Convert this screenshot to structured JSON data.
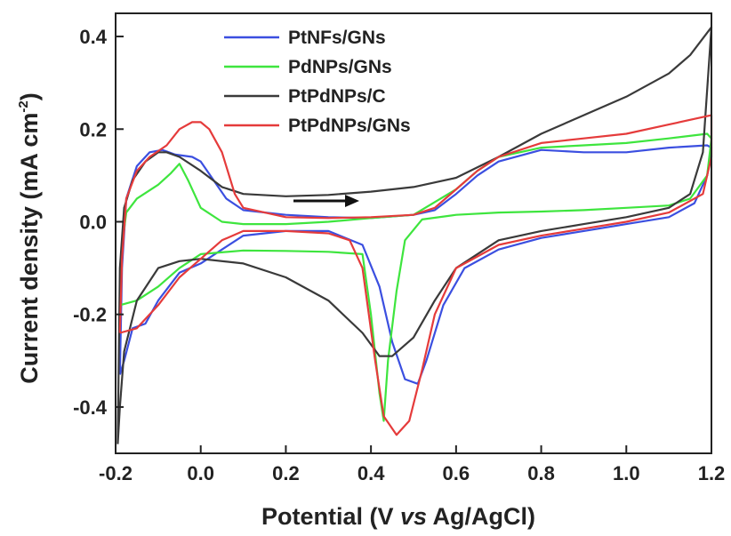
{
  "chart_data": {
    "type": "line",
    "xlabel_parts": [
      "Potential (V ",
      "vs",
      " Ag/AgCl)"
    ],
    "ylabel_parts": [
      "Current density (mA cm",
      "-2",
      ")"
    ],
    "xlim": [
      -0.2,
      1.2
    ],
    "ylim": [
      -0.5,
      0.45
    ],
    "x_ticks": [
      -0.2,
      0.0,
      0.2,
      0.4,
      0.6,
      0.8,
      1.0,
      1.2
    ],
    "x_tick_labels": [
      "-0.2",
      "0.0",
      "0.2",
      "0.4",
      "0.6",
      "0.8",
      "1.0",
      "1.2"
    ],
    "y_ticks": [
      -0.4,
      -0.2,
      0.0,
      0.2,
      0.4
    ],
    "y_tick_labels": [
      "-0.4",
      "-0.2",
      "0.0",
      "0.2",
      "0.4"
    ],
    "grid": false,
    "legend_position": "top-center",
    "scan_direction": "anodic",
    "series": [
      {
        "name": "PtNFs/GNs",
        "color": "#3b4fe0",
        "points": [
          [
            -0.19,
            -0.33
          ],
          [
            -0.185,
            -0.1
          ],
          [
            -0.175,
            0.05
          ],
          [
            -0.15,
            0.12
          ],
          [
            -0.12,
            0.15
          ],
          [
            -0.09,
            0.155
          ],
          [
            -0.06,
            0.145
          ],
          [
            -0.02,
            0.14
          ],
          [
            0.0,
            0.13
          ],
          [
            0.03,
            0.09
          ],
          [
            0.06,
            0.05
          ],
          [
            0.1,
            0.025
          ],
          [
            0.2,
            0.015
          ],
          [
            0.3,
            0.01
          ],
          [
            0.4,
            0.008
          ],
          [
            0.5,
            0.015
          ],
          [
            0.55,
            0.025
          ],
          [
            0.6,
            0.06
          ],
          [
            0.65,
            0.1
          ],
          [
            0.7,
            0.13
          ],
          [
            0.8,
            0.155
          ],
          [
            0.9,
            0.15
          ],
          [
            1.0,
            0.15
          ],
          [
            1.1,
            0.16
          ],
          [
            1.19,
            0.165
          ],
          [
            1.2,
            0.16
          ],
          [
            1.19,
            0.1
          ],
          [
            1.16,
            0.04
          ],
          [
            1.1,
            0.01
          ],
          [
            1.0,
            -0.005
          ],
          [
            0.9,
            -0.02
          ],
          [
            0.8,
            -0.035
          ],
          [
            0.7,
            -0.06
          ],
          [
            0.62,
            -0.1
          ],
          [
            0.57,
            -0.18
          ],
          [
            0.53,
            -0.3
          ],
          [
            0.51,
            -0.35
          ],
          [
            0.48,
            -0.34
          ],
          [
            0.45,
            -0.26
          ],
          [
            0.42,
            -0.14
          ],
          [
            0.38,
            -0.05
          ],
          [
            0.3,
            -0.02
          ],
          [
            0.2,
            -0.02
          ],
          [
            0.1,
            -0.03
          ],
          [
            0.05,
            -0.06
          ],
          [
            0.0,
            -0.09
          ],
          [
            -0.05,
            -0.11
          ],
          [
            -0.1,
            -0.17
          ],
          [
            -0.13,
            -0.22
          ],
          [
            -0.16,
            -0.23
          ],
          [
            -0.18,
            -0.3
          ],
          [
            -0.19,
            -0.33
          ]
        ]
      },
      {
        "name": "PdNPs/GNs",
        "color": "#3ee53e",
        "points": [
          [
            -0.19,
            -0.18
          ],
          [
            -0.185,
            -0.05
          ],
          [
            -0.175,
            0.02
          ],
          [
            -0.15,
            0.05
          ],
          [
            -0.1,
            0.08
          ],
          [
            -0.07,
            0.105
          ],
          [
            -0.05,
            0.125
          ],
          [
            -0.03,
            0.09
          ],
          [
            0.0,
            0.03
          ],
          [
            0.05,
            0.0
          ],
          [
            0.1,
            -0.005
          ],
          [
            0.2,
            -0.005
          ],
          [
            0.3,
            0.0
          ],
          [
            0.4,
            0.008
          ],
          [
            0.5,
            0.015
          ],
          [
            0.6,
            0.07
          ],
          [
            0.65,
            0.11
          ],
          [
            0.7,
            0.14
          ],
          [
            0.8,
            0.16
          ],
          [
            0.9,
            0.165
          ],
          [
            1.0,
            0.17
          ],
          [
            1.1,
            0.18
          ],
          [
            1.19,
            0.19
          ],
          [
            1.2,
            0.18
          ],
          [
            1.19,
            0.1
          ],
          [
            1.15,
            0.05
          ],
          [
            1.1,
            0.035
          ],
          [
            1.0,
            0.03
          ],
          [
            0.9,
            0.025
          ],
          [
            0.8,
            0.022
          ],
          [
            0.7,
            0.02
          ],
          [
            0.6,
            0.015
          ],
          [
            0.52,
            0.005
          ],
          [
            0.48,
            -0.04
          ],
          [
            0.46,
            -0.15
          ],
          [
            0.44,
            -0.3
          ],
          [
            0.43,
            -0.43
          ],
          [
            0.42,
            -0.37
          ],
          [
            0.4,
            -0.2
          ],
          [
            0.38,
            -0.07
          ],
          [
            0.3,
            -0.065
          ],
          [
            0.2,
            -0.063
          ],
          [
            0.1,
            -0.062
          ],
          [
            0.0,
            -0.07
          ],
          [
            -0.05,
            -0.1
          ],
          [
            -0.1,
            -0.14
          ],
          [
            -0.15,
            -0.17
          ],
          [
            -0.19,
            -0.18
          ]
        ]
      },
      {
        "name": "PtPdNPs/C",
        "color": "#3a3a3a",
        "points": [
          [
            -0.195,
            -0.48
          ],
          [
            -0.19,
            -0.1
          ],
          [
            -0.18,
            0.03
          ],
          [
            -0.16,
            0.09
          ],
          [
            -0.13,
            0.13
          ],
          [
            -0.1,
            0.15
          ],
          [
            -0.08,
            0.15
          ],
          [
            -0.05,
            0.14
          ],
          [
            0.0,
            0.11
          ],
          [
            0.05,
            0.075
          ],
          [
            0.1,
            0.06
          ],
          [
            0.2,
            0.055
          ],
          [
            0.3,
            0.058
          ],
          [
            0.4,
            0.065
          ],
          [
            0.5,
            0.075
          ],
          [
            0.6,
            0.095
          ],
          [
            0.7,
            0.14
          ],
          [
            0.8,
            0.19
          ],
          [
            0.9,
            0.23
          ],
          [
            1.0,
            0.27
          ],
          [
            1.1,
            0.32
          ],
          [
            1.15,
            0.36
          ],
          [
            1.2,
            0.42
          ],
          [
            1.18,
            0.15
          ],
          [
            1.15,
            0.06
          ],
          [
            1.1,
            0.03
          ],
          [
            1.0,
            0.01
          ],
          [
            0.9,
            -0.005
          ],
          [
            0.8,
            -0.02
          ],
          [
            0.7,
            -0.04
          ],
          [
            0.6,
            -0.1
          ],
          [
            0.55,
            -0.17
          ],
          [
            0.5,
            -0.25
          ],
          [
            0.45,
            -0.29
          ],
          [
            0.42,
            -0.29
          ],
          [
            0.38,
            -0.24
          ],
          [
            0.3,
            -0.17
          ],
          [
            0.2,
            -0.12
          ],
          [
            0.1,
            -0.09
          ],
          [
            0.0,
            -0.08
          ],
          [
            -0.05,
            -0.085
          ],
          [
            -0.1,
            -0.1
          ],
          [
            -0.15,
            -0.17
          ],
          [
            -0.18,
            -0.28
          ],
          [
            -0.19,
            -0.4
          ],
          [
            -0.195,
            -0.48
          ]
        ]
      },
      {
        "name": "PtPdNPs/GNs",
        "color": "#e53b3b",
        "points": [
          [
            -0.19,
            -0.24
          ],
          [
            -0.185,
            -0.08
          ],
          [
            -0.175,
            0.05
          ],
          [
            -0.15,
            0.11
          ],
          [
            -0.12,
            0.14
          ],
          [
            -0.08,
            0.165
          ],
          [
            -0.05,
            0.2
          ],
          [
            -0.02,
            0.215
          ],
          [
            0.0,
            0.215
          ],
          [
            0.02,
            0.2
          ],
          [
            0.05,
            0.15
          ],
          [
            0.08,
            0.06
          ],
          [
            0.1,
            0.03
          ],
          [
            0.2,
            0.01
          ],
          [
            0.3,
            0.008
          ],
          [
            0.4,
            0.01
          ],
          [
            0.5,
            0.015
          ],
          [
            0.55,
            0.03
          ],
          [
            0.6,
            0.07
          ],
          [
            0.65,
            0.11
          ],
          [
            0.7,
            0.14
          ],
          [
            0.8,
            0.17
          ],
          [
            0.9,
            0.18
          ],
          [
            1.0,
            0.19
          ],
          [
            1.1,
            0.21
          ],
          [
            1.2,
            0.23
          ],
          [
            1.2,
            0.14
          ],
          [
            1.18,
            0.06
          ],
          [
            1.1,
            0.02
          ],
          [
            1.0,
            0.0
          ],
          [
            0.9,
            -0.015
          ],
          [
            0.8,
            -0.03
          ],
          [
            0.7,
            -0.05
          ],
          [
            0.6,
            -0.1
          ],
          [
            0.55,
            -0.2
          ],
          [
            0.52,
            -0.32
          ],
          [
            0.49,
            -0.43
          ],
          [
            0.46,
            -0.46
          ],
          [
            0.43,
            -0.42
          ],
          [
            0.41,
            -0.3
          ],
          [
            0.38,
            -0.1
          ],
          [
            0.35,
            -0.04
          ],
          [
            0.3,
            -0.025
          ],
          [
            0.2,
            -0.02
          ],
          [
            0.1,
            -0.02
          ],
          [
            0.05,
            -0.04
          ],
          [
            0.0,
            -0.08
          ],
          [
            -0.05,
            -0.12
          ],
          [
            -0.1,
            -0.18
          ],
          [
            -0.15,
            -0.23
          ],
          [
            -0.19,
            -0.24
          ]
        ]
      }
    ]
  }
}
